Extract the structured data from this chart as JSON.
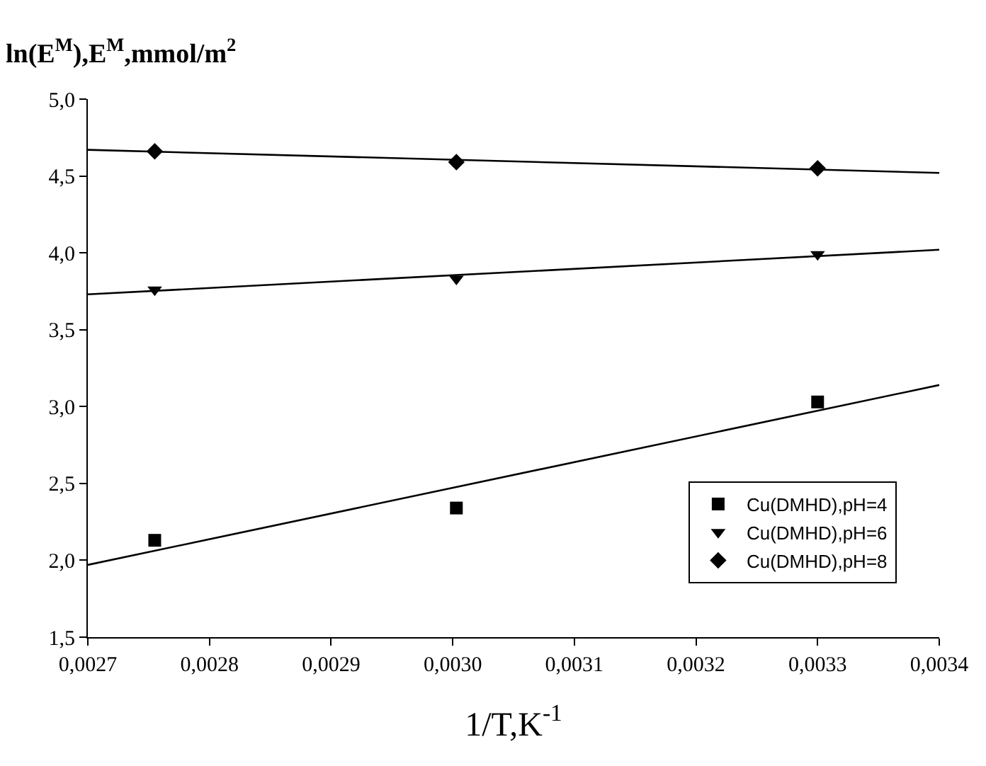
{
  "chart_data": {
    "type": "scatter",
    "ylabel": "ln(E$^{M}$),E$^{M}$,mmol/m$^{2}$",
    "xlabel": "1/T,K$^{-1}$",
    "xlim": [
      0.0027,
      0.0034
    ],
    "xticks": [
      {
        "value": 0.0027,
        "label": "0,0027"
      },
      {
        "value": 0.0028,
        "label": "0,0028"
      },
      {
        "value": 0.0029,
        "label": "0,0029"
      },
      {
        "value": 0.003,
        "label": "0,0030"
      },
      {
        "value": 0.0031,
        "label": "0,0031"
      },
      {
        "value": 0.0032,
        "label": "0,0032"
      },
      {
        "value": 0.0033,
        "label": "0,0033"
      },
      {
        "value": 0.0034,
        "label": "0,0034"
      }
    ],
    "ylim": [
      1.5,
      5.0
    ],
    "yticks": [
      {
        "value": 1.5,
        "label": "1,5"
      },
      {
        "value": 2.0,
        "label": "2,0"
      },
      {
        "value": 2.5,
        "label": "2,5"
      },
      {
        "value": 3.0,
        "label": "3,0"
      },
      {
        "value": 3.5,
        "label": "3,5"
      },
      {
        "value": 4.0,
        "label": "4,0"
      },
      {
        "value": 4.5,
        "label": "4,5"
      },
      {
        "value": 5.0,
        "label": "5,0"
      }
    ],
    "legend": "bottom right",
    "series": [
      {
        "name": "Cu(DMHD),pH=4",
        "color": "#000000",
        "marker": "square",
        "x": [
          0.002755,
          0.003003,
          0.0033
        ],
        "values": [
          2.13,
          2.34,
          3.03
        ]
      },
      {
        "name": "Cu(DMHD),pH=6",
        "color": "#000000",
        "marker": "triangle",
        "x": [
          0.002755,
          0.003003,
          0.0033
        ],
        "values": [
          3.76,
          3.83,
          3.99
        ]
      },
      {
        "name": "Cu(DMHD),pH=8",
        "color": "#000000",
        "marker": "diamond",
        "x": [
          0.002755,
          0.003003,
          0.0033
        ],
        "values": [
          4.66,
          4.59,
          4.55
        ]
      },
      {
        "type": "line",
        "color": "#000000",
        "x": [
          0.0027,
          0.0034
        ],
        "values": [
          1.97,
          3.14
        ]
      },
      {
        "type": "line",
        "color": "#000000",
        "x": [
          0.0027,
          0.0034
        ],
        "values": [
          3.73,
          4.02
        ]
      },
      {
        "type": "line",
        "color": "#000000",
        "x": [
          0.0027,
          0.0034
        ],
        "values": [
          4.67,
          4.52
        ]
      }
    ]
  }
}
